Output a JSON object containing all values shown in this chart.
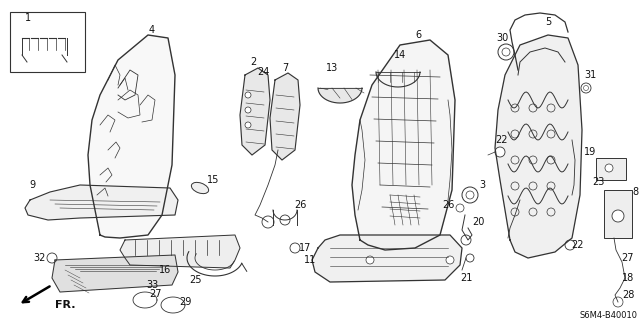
{
  "background_color": "#ffffff",
  "diagram_code": "S6M4-B40010",
  "line_color": "#333333",
  "text_color": "#111111",
  "font_size": 7,
  "fig_w": 6.4,
  "fig_h": 3.2,
  "dpi": 100
}
